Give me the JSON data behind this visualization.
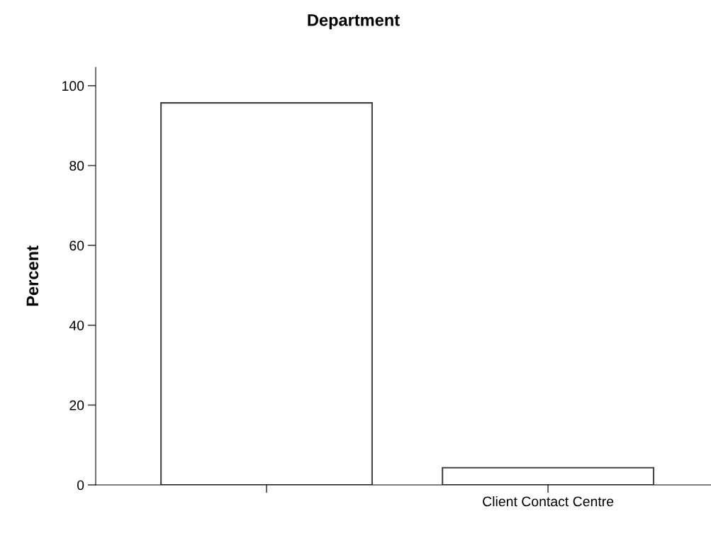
{
  "chart_data": {
    "type": "bar",
    "title": "Department",
    "ylabel": "Percent",
    "categories": [
      null,
      "Client Contact Centre"
    ],
    "values": [
      95.7,
      4.3
    ],
    "color": "#ffffff",
    "ylim": [
      0,
      104.6
    ],
    "yticks": [
      0,
      20,
      40,
      60,
      80,
      100
    ],
    "grid": false,
    "legend": false
  }
}
